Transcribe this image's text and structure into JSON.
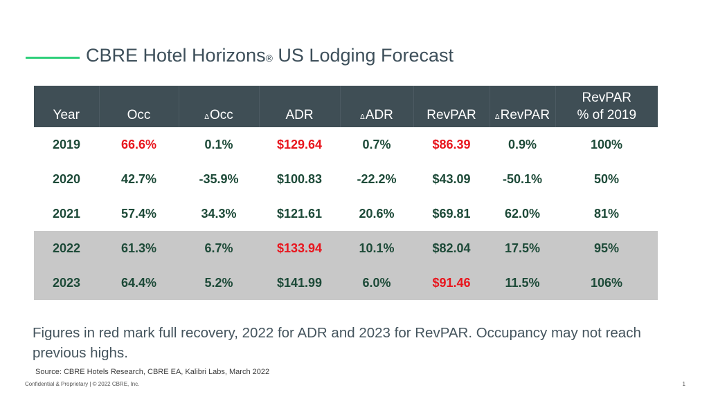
{
  "slide": {
    "title": "CBRE Hotel Horizons",
    "title_mark": "®",
    "title_suffix": " US Lodging Forecast",
    "accent_color": "#2ecf7a",
    "header_bg": "#3f4e55",
    "recovery_color": "#e8161e"
  },
  "table": {
    "headers": [
      "Year",
      "Occ",
      "Occ",
      "ADR",
      "ADR",
      "RevPAR",
      "RevPAR",
      "RevPAR",
      "% of  2019"
    ],
    "delta_symbol": "Δ",
    "rows": [
      {
        "year": "2019",
        "occ": "66.6%",
        "d_occ": "0.1%",
        "adr": "$129.64",
        "d_adr": "0.7%",
        "revpar": "$86.39",
        "d_revpar": "0.9%",
        "pct_2019": "100%"
      },
      {
        "year": "2020",
        "occ": "42.7%",
        "d_occ": "-35.9%",
        "adr": "$100.83",
        "d_adr": "-22.2%",
        "revpar": "$43.09",
        "d_revpar": "-50.1%",
        "pct_2019": "50%"
      },
      {
        "year": "2021",
        "occ": "57.4%",
        "d_occ": "34.3%",
        "adr": "$121.61",
        "d_adr": "20.6%",
        "revpar": "$69.81",
        "d_revpar": "62.0%",
        "pct_2019": "81%"
      },
      {
        "year": "2022",
        "occ": "61.3%",
        "d_occ": "6.7%",
        "adr": "$133.94",
        "d_adr": "10.1%",
        "revpar": "$82.04",
        "d_revpar": "17.5%",
        "pct_2019": "95%"
      },
      {
        "year": "2023",
        "occ": "64.4%",
        "d_occ": "5.2%",
        "adr": "$141.99",
        "d_adr": "6.0%",
        "revpar": "$91.46",
        "d_revpar": "11.5%",
        "pct_2019": "106%"
      }
    ]
  },
  "footnote": "Figures in red mark full recovery, 2022 for ADR and 2023 for RevPAR. Occupancy may not reach previous highs.",
  "source": "Source: CBRE Hotels Research, CBRE EA, Kalibri Labs, March 2022",
  "confidential": "Confidential & Proprietary | © 2022 CBRE, Inc.",
  "page_number": "1"
}
